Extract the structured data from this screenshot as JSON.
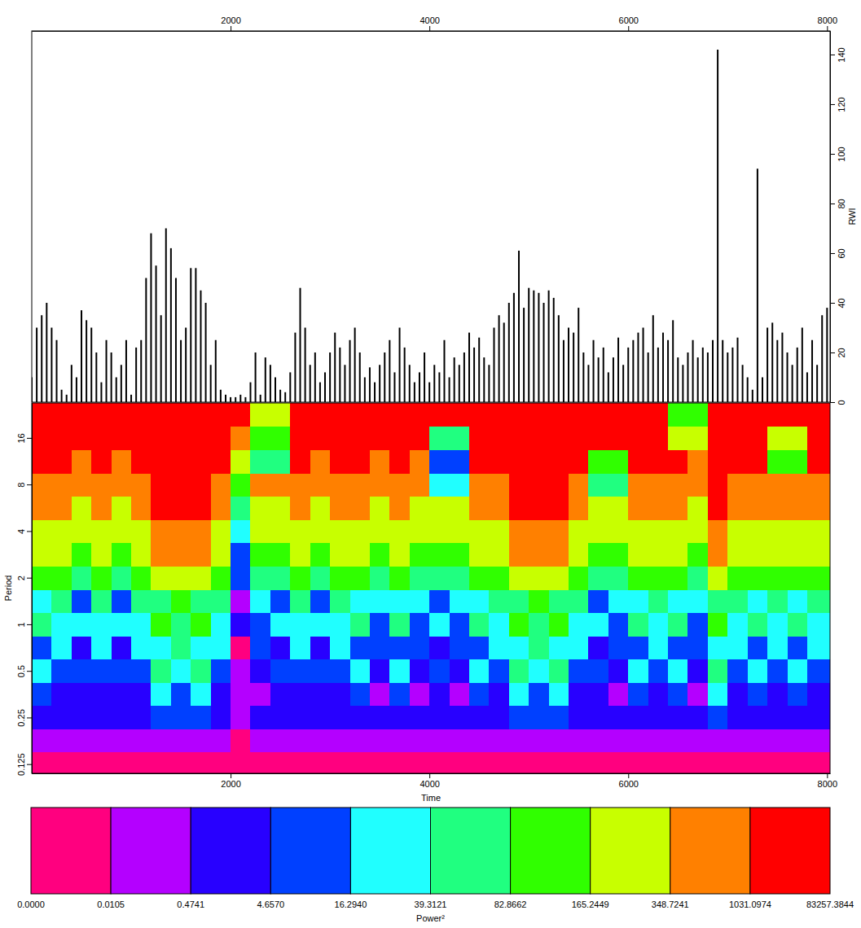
{
  "chart_data": [
    {
      "type": "spike",
      "y_label": "RWI",
      "xlim": [
        0,
        8030
      ],
      "xticks": [
        2000,
        4000,
        6000,
        8000
      ],
      "ylim": [
        0,
        149.5
      ],
      "yticks": [
        0,
        20,
        40,
        60,
        80,
        100,
        120,
        140
      ],
      "x": [
        0,
        50,
        100,
        150,
        200,
        250,
        300,
        350,
        400,
        450,
        500,
        550,
        600,
        650,
        700,
        750,
        800,
        850,
        900,
        950,
        1000,
        1050,
        1100,
        1150,
        1200,
        1250,
        1300,
        1350,
        1400,
        1450,
        1500,
        1550,
        1600,
        1650,
        1700,
        1750,
        1800,
        1850,
        1900,
        1950,
        2000,
        2050,
        2100,
        2150,
        2200,
        2250,
        2300,
        2350,
        2400,
        2450,
        2500,
        2550,
        2600,
        2650,
        2700,
        2750,
        2800,
        2850,
        2900,
        2950,
        3000,
        3050,
        3100,
        3150,
        3200,
        3250,
        3300,
        3350,
        3400,
        3450,
        3500,
        3550,
        3600,
        3650,
        3700,
        3750,
        3800,
        3850,
        3900,
        3950,
        4000,
        4050,
        4100,
        4150,
        4200,
        4250,
        4300,
        4350,
        4400,
        4450,
        4500,
        4550,
        4600,
        4650,
        4700,
        4750,
        4800,
        4850,
        4900,
        4950,
        5000,
        5050,
        5100,
        5150,
        5200,
        5250,
        5300,
        5350,
        5400,
        5450,
        5500,
        5550,
        5600,
        5650,
        5700,
        5750,
        5800,
        5850,
        5900,
        5950,
        6000,
        6050,
        6100,
        6150,
        6200,
        6250,
        6300,
        6350,
        6400,
        6450,
        6500,
        6550,
        6600,
        6650,
        6700,
        6750,
        6800,
        6850,
        6900,
        6950,
        7000,
        7050,
        7100,
        7150,
        7200,
        7250,
        7300,
        7350,
        7400,
        7450,
        7500,
        7550,
        7600,
        7650,
        7700,
        7750,
        7800,
        7850,
        7900,
        7950,
        8000
      ],
      "series": [
        {
          "color": "#000000",
          "values": [
            10,
            30,
            35,
            40,
            30,
            25,
            5,
            3,
            15,
            10,
            37,
            33,
            30,
            20,
            8,
            25,
            20,
            10,
            15,
            25,
            3,
            22,
            25,
            50,
            68,
            55,
            35,
            70,
            62,
            50,
            25,
            30,
            54,
            54,
            45,
            40,
            15,
            25,
            5,
            3,
            2,
            2,
            3,
            2,
            8,
            20,
            3,
            18,
            15,
            10,
            5,
            4,
            12,
            28,
            46,
            30,
            15,
            20,
            8,
            12,
            20,
            28,
            22,
            15,
            25,
            30,
            20,
            10,
            14,
            8,
            15,
            20,
            25,
            12,
            30,
            22,
            15,
            8,
            12,
            20,
            8,
            15,
            12,
            25,
            10,
            18,
            15,
            20,
            28,
            22,
            26,
            18,
            15,
            30,
            35,
            32,
            40,
            44,
            61,
            38,
            46,
            45,
            44,
            40,
            45,
            42,
            35,
            25,
            30,
            28,
            38,
            20,
            15,
            25,
            18,
            22,
            12,
            18,
            26,
            15,
            22,
            25,
            28,
            30,
            20,
            35,
            22,
            28,
            25,
            33,
            18,
            15,
            20,
            25,
            18,
            22,
            20,
            25,
            142,
            25,
            20,
            22,
            26,
            15,
            10,
            5,
            94,
            10,
            30,
            32,
            25,
            28,
            20,
            15,
            22,
            30,
            12,
            25,
            15,
            35,
            38
          ]
        }
      ]
    },
    {
      "type": "heatmap",
      "x_label": "Time",
      "y_label": "Period",
      "log": "y",
      "xlim": [
        0,
        8030
      ],
      "xticks": [
        2000,
        4000,
        6000,
        8000
      ],
      "ylim": [
        0.109,
        26.9
      ],
      "yticks": [
        0.125,
        0.25,
        0.5,
        1,
        2,
        4,
        8,
        16
      ],
      "x_edges": [
        0,
        200,
        400,
        600,
        800,
        1000,
        1200,
        1400,
        1600,
        1800,
        2000,
        2200,
        2400,
        2600,
        2800,
        3000,
        3200,
        3400,
        3600,
        3800,
        4000,
        4200,
        4400,
        4600,
        4800,
        5000,
        5200,
        5400,
        5600,
        5800,
        6000,
        6200,
        6400,
        6600,
        6800,
        7000,
        7200,
        7400,
        7600,
        7800,
        8030
      ],
      "period_edges": [
        0.109,
        0.15,
        0.21,
        0.3,
        0.42,
        0.6,
        0.84,
        1.19,
        1.68,
        2.38,
        3.36,
        4.76,
        6.73,
        9.5,
        13.5,
        19,
        26.9
      ],
      "power": [
        [
          0.005,
          0.005,
          0.005,
          0.005,
          0.005,
          0.005,
          0.005,
          0.005,
          0.005,
          0.005,
          0.005,
          0.005,
          0.005,
          0.005,
          0.005,
          0.005,
          0.005,
          0.005,
          0.005,
          0.005,
          0.005,
          0.005,
          0.005,
          0.005,
          0.005,
          0.005,
          0.005,
          0.005,
          0.005,
          0.005,
          0.005,
          0.005,
          0.005,
          0.005,
          0.005,
          0.005,
          0.005,
          0.005,
          0.005,
          0.005
        ],
        [
          0.2,
          0.2,
          0.2,
          0.2,
          0.2,
          0.2,
          0.2,
          0.2,
          0.2,
          0.2,
          0.005,
          0.2,
          0.2,
          0.2,
          0.2,
          0.2,
          0.2,
          0.2,
          0.2,
          0.2,
          0.2,
          0.2,
          0.2,
          0.2,
          0.2,
          0.2,
          0.2,
          0.2,
          0.2,
          0.2,
          0.2,
          0.2,
          0.2,
          0.2,
          0.2,
          0.2,
          0.2,
          0.2,
          0.2,
          0.2
        ],
        [
          2,
          2,
          2,
          2,
          2,
          2,
          10,
          10,
          10,
          2,
          0.2,
          2,
          2,
          2,
          2,
          2,
          2,
          2,
          2,
          2,
          2,
          2,
          2,
          2,
          10,
          10,
          10,
          2,
          2,
          2,
          2,
          2,
          2,
          2,
          10,
          2,
          2,
          2,
          2,
          2
        ],
        [
          10,
          2,
          2,
          2,
          2,
          2,
          28,
          10,
          28,
          2,
          0.2,
          0.2,
          2,
          2,
          2,
          2,
          10,
          0.2,
          10,
          0.2,
          2,
          0.2,
          10,
          2,
          28,
          10,
          28,
          2,
          2,
          0.2,
          10,
          2,
          10,
          0.2,
          28,
          2,
          10,
          2,
          10,
          2
        ],
        [
          28,
          10,
          10,
          10,
          10,
          10,
          60,
          28,
          60,
          10,
          0.2,
          2,
          10,
          10,
          10,
          10,
          28,
          2,
          28,
          2,
          10,
          2,
          28,
          10,
          60,
          28,
          60,
          10,
          10,
          2,
          28,
          10,
          28,
          2,
          60,
          10,
          28,
          10,
          28,
          10
        ],
        [
          10,
          28,
          2,
          28,
          2,
          28,
          28,
          60,
          28,
          28,
          0.005,
          10,
          2,
          28,
          2,
          28,
          10,
          10,
          10,
          10,
          2,
          10,
          10,
          28,
          28,
          60,
          28,
          28,
          2,
          10,
          10,
          28,
          10,
          10,
          28,
          28,
          10,
          28,
          10,
          28
        ],
        [
          60,
          28,
          28,
          28,
          28,
          28,
          120,
          60,
          120,
          28,
          2,
          10,
          28,
          28,
          28,
          28,
          60,
          10,
          60,
          10,
          28,
          10,
          60,
          28,
          120,
          60,
          120,
          28,
          28,
          10,
          60,
          28,
          60,
          10,
          120,
          28,
          60,
          28,
          60,
          28
        ],
        [
          28,
          60,
          10,
          60,
          10,
          60,
          60,
          120,
          60,
          60,
          0.2,
          28,
          10,
          60,
          10,
          60,
          28,
          28,
          28,
          28,
          10,
          28,
          28,
          60,
          60,
          120,
          60,
          60,
          10,
          28,
          28,
          60,
          28,
          28,
          60,
          60,
          28,
          60,
          28,
          60
        ],
        [
          120,
          120,
          60,
          120,
          60,
          120,
          250,
          250,
          250,
          120,
          10,
          60,
          60,
          120,
          60,
          120,
          120,
          60,
          120,
          60,
          60,
          60,
          120,
          120,
          250,
          250,
          250,
          120,
          60,
          60,
          120,
          120,
          120,
          60,
          250,
          120,
          120,
          120,
          120,
          120
        ],
        [
          250,
          250,
          120,
          250,
          120,
          250,
          600,
          600,
          600,
          250,
          10,
          120,
          120,
          250,
          120,
          250,
          250,
          120,
          250,
          120,
          120,
          120,
          250,
          250,
          600,
          600,
          600,
          250,
          120,
          120,
          250,
          250,
          250,
          120,
          600,
          250,
          250,
          250,
          250,
          250
        ],
        [
          250,
          250,
          250,
          250,
          250,
          250,
          600,
          600,
          600,
          250,
          28,
          250,
          250,
          250,
          250,
          250,
          250,
          250,
          250,
          250,
          250,
          250,
          250,
          250,
          600,
          600,
          600,
          250,
          250,
          250,
          250,
          250,
          250,
          250,
          600,
          250,
          250,
          250,
          250,
          250
        ],
        [
          600,
          600,
          250,
          600,
          250,
          600,
          3000,
          3000,
          3000,
          600,
          60,
          250,
          250,
          600,
          250,
          600,
          600,
          250,
          600,
          250,
          250,
          250,
          600,
          600,
          3000,
          3000,
          3000,
          600,
          250,
          250,
          600,
          600,
          600,
          250,
          3000,
          600,
          600,
          600,
          600,
          600
        ],
        [
          600,
          600,
          600,
          600,
          600,
          600,
          3000,
          3000,
          3000,
          600,
          120,
          600,
          600,
          600,
          600,
          600,
          600,
          600,
          600,
          600,
          28,
          28,
          600,
          600,
          3000,
          3000,
          3000,
          600,
          60,
          60,
          600,
          600,
          600,
          600,
          3000,
          600,
          600,
          600,
          600,
          600
        ],
        [
          3000,
          3000,
          600,
          3000,
          600,
          3000,
          3000,
          3000,
          3000,
          3000,
          250,
          60,
          60,
          3000,
          600,
          3000,
          3000,
          600,
          3000,
          600,
          10,
          10,
          3000,
          3000,
          3000,
          3000,
          3000,
          3000,
          120,
          120,
          3000,
          3000,
          3000,
          600,
          3000,
          3000,
          3000,
          120,
          120,
          3000
        ],
        [
          3000,
          3000,
          3000,
          3000,
          3000,
          3000,
          3000,
          3000,
          3000,
          3000,
          600,
          120,
          120,
          3000,
          3000,
          3000,
          3000,
          3000,
          3000,
          3000,
          60,
          60,
          3000,
          3000,
          3000,
          3000,
          3000,
          3000,
          3000,
          3000,
          3000,
          3000,
          250,
          250,
          3000,
          3000,
          3000,
          250,
          250,
          3000
        ],
        [
          3000,
          3000,
          3000,
          3000,
          3000,
          3000,
          3000,
          3000,
          3000,
          3000,
          3000,
          250,
          250,
          3000,
          3000,
          3000,
          3000,
          3000,
          3000,
          3000,
          3000,
          3000,
          3000,
          3000,
          3000,
          3000,
          3000,
          3000,
          3000,
          3000,
          3000,
          3000,
          120,
          120,
          3000,
          3000,
          3000,
          3000,
          3000,
          3000
        ]
      ],
      "colorbar": {
        "title": "Power²",
        "colors": [
          "#ff007f",
          "#b400ff",
          "#2800ff",
          "#0040ff",
          "#20ffff",
          "#20ff80",
          "#30ff00",
          "#c8ff00",
          "#ff8000",
          "#ff0000"
        ],
        "ticks": [
          {
            "value": 0,
            "label": "0.0000"
          },
          {
            "value": 0.0105,
            "label": "0.0105"
          },
          {
            "value": 0.4741,
            "label": "0.4741"
          },
          {
            "value": 4.657,
            "label": "4.6570"
          },
          {
            "value": 16.294,
            "label": "16.2940"
          },
          {
            "value": 39.3121,
            "label": "39.3121"
          },
          {
            "value": 82.8662,
            "label": "82.8662"
          },
          {
            "value": 165.2449,
            "label": "165.2449"
          },
          {
            "value": 348.7241,
            "label": "348.7241"
          },
          {
            "value": 1031.0974,
            "label": "1031.0974"
          },
          {
            "value": 83257.3844,
            "label": "83257.3844"
          }
        ]
      }
    }
  ]
}
